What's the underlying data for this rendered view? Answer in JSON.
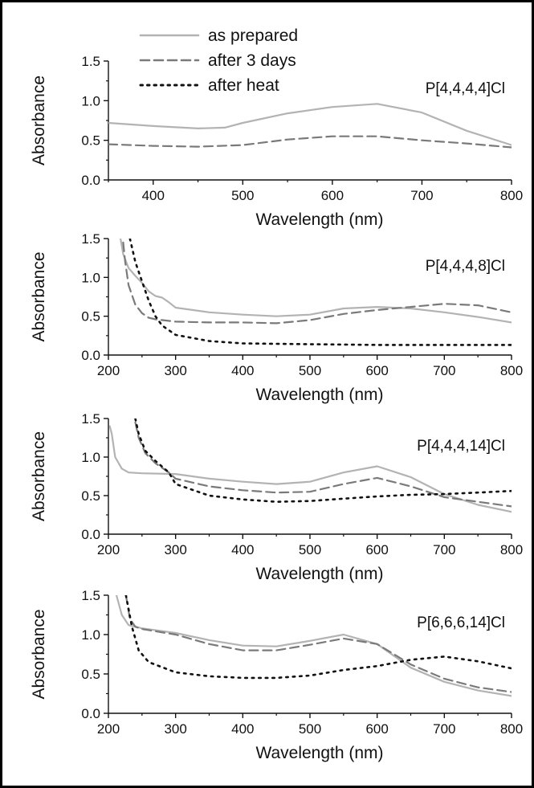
{
  "legend": {
    "placement": "top-left",
    "entries": [
      {
        "label": "as prepared",
        "color": "#b3b3b3",
        "dash": "solid"
      },
      {
        "label": "after 3 days",
        "color": "#7a7a7a",
        "dash": "dashed"
      },
      {
        "label": "after heat",
        "color": "#111111",
        "dash": "dotted"
      }
    ]
  },
  "chart_data": [
    {
      "type": "line",
      "panel_label": "P[4,4,4,4]Cl",
      "xlabel": "Wavelength (nm)",
      "ylabel": "Absorbance",
      "xlim": [
        350,
        800
      ],
      "ylim": [
        0,
        1.5
      ],
      "xticks": [
        400,
        500,
        600,
        700,
        800
      ],
      "yticks": [
        0.0,
        0.5,
        1.0,
        1.5
      ],
      "ytick_labels": [
        "0.0",
        "0.5",
        "1.0",
        "1.5"
      ],
      "series": [
        {
          "name": "as prepared",
          "x": [
            350,
            400,
            450,
            480,
            500,
            550,
            600,
            650,
            700,
            750,
            800
          ],
          "y": [
            0.72,
            0.68,
            0.65,
            0.66,
            0.72,
            0.84,
            0.92,
            0.96,
            0.85,
            0.62,
            0.44
          ]
        },
        {
          "name": "after 3 days",
          "x": [
            350,
            400,
            450,
            500,
            550,
            600,
            650,
            700,
            750,
            800
          ],
          "y": [
            0.45,
            0.43,
            0.42,
            0.44,
            0.51,
            0.55,
            0.55,
            0.5,
            0.46,
            0.41
          ]
        }
      ]
    },
    {
      "type": "line",
      "panel_label": "P[4,4,4,8]Cl",
      "xlabel": "Wavelength (nm)",
      "ylabel": "Absorbance",
      "xlim": [
        200,
        800
      ],
      "ylim": [
        0,
        1.5
      ],
      "xticks": [
        200,
        300,
        400,
        500,
        600,
        700,
        800
      ],
      "yticks": [
        0.0,
        0.5,
        1.0,
        1.5
      ],
      "ytick_labels": [
        "0.0",
        "0.5",
        "1.0",
        "1.5"
      ],
      "series": [
        {
          "name": "as prepared",
          "x": [
            218,
            222,
            230,
            240,
            250,
            260,
            270,
            280,
            290,
            300,
            350,
            400,
            450,
            500,
            550,
            600,
            650,
            700,
            750,
            800
          ],
          "y": [
            1.5,
            1.3,
            1.12,
            1.02,
            0.93,
            0.82,
            0.76,
            0.74,
            0.68,
            0.61,
            0.55,
            0.52,
            0.5,
            0.52,
            0.6,
            0.62,
            0.6,
            0.55,
            0.49,
            0.42
          ]
        },
        {
          "name": "after 3 days",
          "x": [
            222,
            225,
            230,
            240,
            250,
            260,
            270,
            300,
            350,
            400,
            450,
            500,
            550,
            600,
            650,
            700,
            750,
            800
          ],
          "y": [
            1.45,
            1.2,
            0.9,
            0.65,
            0.54,
            0.48,
            0.46,
            0.43,
            0.42,
            0.42,
            0.41,
            0.45,
            0.53,
            0.58,
            0.62,
            0.66,
            0.64,
            0.55
          ]
        },
        {
          "name": "after heat",
          "x": [
            232,
            240,
            250,
            260,
            270,
            280,
            300,
            350,
            400,
            500,
            600,
            700,
            800
          ],
          "y": [
            1.5,
            1.2,
            0.95,
            0.7,
            0.5,
            0.38,
            0.26,
            0.18,
            0.15,
            0.14,
            0.13,
            0.13,
            0.13
          ]
        }
      ]
    },
    {
      "type": "line",
      "panel_label": "P[4,4,4,14]Cl",
      "xlabel": "Wavelength (nm)",
      "ylabel": "Absorbance",
      "xlim": [
        200,
        800
      ],
      "ylim": [
        0,
        1.5
      ],
      "xticks": [
        200,
        300,
        400,
        500,
        600,
        700,
        800
      ],
      "yticks": [
        0.0,
        0.5,
        1.0,
        1.5
      ],
      "ytick_labels": [
        "0.0",
        "0.5",
        "1.0",
        "1.5"
      ],
      "series": [
        {
          "name": "as prepared",
          "x": [
            202,
            205,
            210,
            220,
            230,
            250,
            300,
            350,
            400,
            450,
            500,
            550,
            600,
            650,
            700,
            750,
            800
          ],
          "y": [
            1.4,
            1.3,
            1.0,
            0.85,
            0.8,
            0.79,
            0.78,
            0.72,
            0.68,
            0.65,
            0.68,
            0.8,
            0.88,
            0.74,
            0.52,
            0.38,
            0.29
          ]
        },
        {
          "name": "after 3 days",
          "x": [
            240,
            245,
            255,
            270,
            290,
            300,
            350,
            400,
            450,
            500,
            550,
            600,
            650,
            700,
            750,
            800
          ],
          "y": [
            1.45,
            1.25,
            1.05,
            0.92,
            0.8,
            0.72,
            0.62,
            0.57,
            0.54,
            0.55,
            0.65,
            0.73,
            0.62,
            0.48,
            0.42,
            0.36
          ]
        },
        {
          "name": "after heat",
          "x": [
            240,
            245,
            255,
            270,
            290,
            300,
            350,
            400,
            450,
            500,
            550,
            600,
            650,
            700,
            750,
            800
          ],
          "y": [
            1.5,
            1.3,
            1.08,
            0.95,
            0.8,
            0.65,
            0.5,
            0.45,
            0.42,
            0.43,
            0.46,
            0.49,
            0.51,
            0.52,
            0.54,
            0.56
          ]
        }
      ]
    },
    {
      "type": "line",
      "panel_label": "P[6,6,6,14]Cl",
      "xlabel": "Wavelength (nm)",
      "ylabel": "Absorbance",
      "xlim": [
        200,
        800
      ],
      "ylim": [
        0,
        1.5
      ],
      "xticks": [
        200,
        300,
        400,
        500,
        600,
        700,
        800
      ],
      "yticks": [
        0.0,
        0.5,
        1.0,
        1.5
      ],
      "ytick_labels": [
        "0.0",
        "0.5",
        "1.0",
        "1.5"
      ],
      "series": [
        {
          "name": "as prepared",
          "x": [
            212,
            220,
            230,
            250,
            300,
            350,
            400,
            450,
            500,
            550,
            600,
            650,
            700,
            750,
            800
          ],
          "y": [
            1.5,
            1.25,
            1.12,
            1.08,
            1.02,
            0.93,
            0.86,
            0.85,
            0.92,
            1.0,
            0.88,
            0.58,
            0.4,
            0.29,
            0.22
          ]
        },
        {
          "name": "after 3 days",
          "x": [
            226,
            232,
            240,
            250,
            300,
            350,
            400,
            450,
            500,
            550,
            600,
            650,
            700,
            750,
            800
          ],
          "y": [
            1.5,
            1.2,
            1.1,
            1.07,
            1.0,
            0.88,
            0.8,
            0.8,
            0.87,
            0.95,
            0.88,
            0.62,
            0.44,
            0.33,
            0.27
          ]
        },
        {
          "name": "after heat",
          "x": [
            226,
            235,
            245,
            260,
            300,
            350,
            400,
            450,
            500,
            550,
            600,
            650,
            700,
            750,
            800
          ],
          "y": [
            1.5,
            1.1,
            0.8,
            0.65,
            0.52,
            0.47,
            0.45,
            0.45,
            0.48,
            0.55,
            0.6,
            0.68,
            0.72,
            0.66,
            0.57
          ]
        }
      ]
    }
  ]
}
